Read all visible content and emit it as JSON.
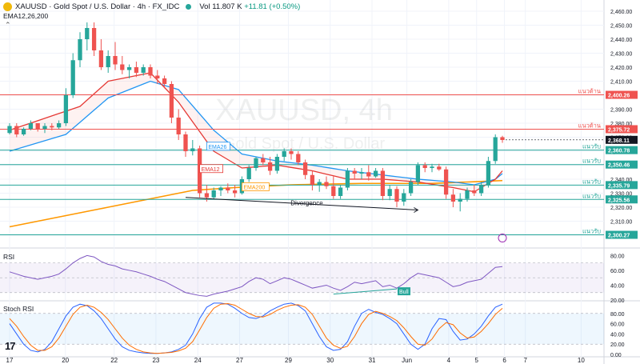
{
  "header": {
    "symbol": "XAUUSD · Gold Spot / U.S. Dollar · 4h · FX_IDC",
    "volume_label": "Vol",
    "volume_value": "11.807 K",
    "volume_change": "+11.81 (+0.50%)",
    "indicator_label": "EMA12,26,200"
  },
  "watermark": {
    "symbol": "XAUUSD, 4h",
    "name": "Gold Spot / U.S. Dollar"
  },
  "panes": {
    "rsi_label": "RSI",
    "stoch_label": "Stoch RSI"
  },
  "colors": {
    "up": "#26a69a",
    "down": "#ef5350",
    "ema12": "#e53935",
    "ema26": "#2196f3",
    "ema200": "#ff9800",
    "resistance": "#ef5350",
    "support": "#26a69a",
    "rsi": "#7e57c2",
    "stoch_k": "#2962ff",
    "stoch_d": "#ff6d00"
  },
  "chart_data": [
    {
      "type": "candlestick",
      "x_ticks": [
        "17",
        "20",
        "22",
        "23",
        "24",
        "27",
        "29",
        "30",
        "31",
        "Jun",
        "4",
        "5",
        "6",
        "7",
        "10"
      ],
      "y_ticks": [
        2300,
        2310,
        2320,
        2330,
        2340,
        2350,
        2360,
        2370,
        2380,
        2390,
        2400,
        2410,
        2420,
        2430,
        2440,
        2450,
        2460
      ],
      "y_tick_labels": [
        "2,300.00",
        "2,310.00",
        "2,320.00",
        "2,330.00",
        "2,340.00",
        "2,350.00",
        "2,360.00",
        "2,370.00",
        "2,380.00",
        "2,390.00",
        "2,400.00",
        "2,410.00",
        "2,420.00",
        "2,430.00",
        "2,440.00",
        "2,450.00",
        "2,460.00"
      ],
      "ylim": [
        2292,
        2468
      ],
      "candles": [
        [
          2373,
          2380,
          2372,
          2378
        ],
        [
          2378,
          2380,
          2370,
          2372
        ],
        [
          2372,
          2377,
          2371,
          2376
        ],
        [
          2376,
          2382,
          2375,
          2380
        ],
        [
          2380,
          2379,
          2374,
          2376
        ],
        [
          2376,
          2380,
          2373,
          2378
        ],
        [
          2378,
          2380,
          2375,
          2377
        ],
        [
          2377,
          2382,
          2376,
          2380
        ],
        [
          2380,
          2405,
          2378,
          2400
        ],
        [
          2400,
          2430,
          2398,
          2425
        ],
        [
          2425,
          2445,
          2420,
          2440
        ],
        [
          2440,
          2452,
          2432,
          2448
        ],
        [
          2448,
          2452,
          2428,
          2432
        ],
        [
          2432,
          2440,
          2418,
          2420
        ],
        [
          2420,
          2432,
          2416,
          2428
        ],
        [
          2428,
          2438,
          2418,
          2422
        ],
        [
          2422,
          2428,
          2415,
          2418
        ],
        [
          2418,
          2422,
          2412,
          2420
        ],
        [
          2420,
          2424,
          2413,
          2416
        ],
        [
          2416,
          2422,
          2414,
          2420
        ],
        [
          2420,
          2422,
          2412,
          2414
        ],
        [
          2414,
          2418,
          2408,
          2412
        ],
        [
          2412,
          2414,
          2405,
          2408
        ],
        [
          2408,
          2410,
          2380,
          2384
        ],
        [
          2384,
          2390,
          2368,
          2372
        ],
        [
          2372,
          2374,
          2356,
          2360
        ],
        [
          2360,
          2368,
          2357,
          2362
        ],
        [
          2362,
          2364,
          2327,
          2330
        ],
        [
          2330,
          2336,
          2324,
          2327
        ],
        [
          2327,
          2334,
          2326,
          2332
        ],
        [
          2332,
          2335,
          2328,
          2334
        ],
        [
          2334,
          2337,
          2330,
          2332
        ],
        [
          2332,
          2336,
          2327,
          2330
        ],
        [
          2330,
          2342,
          2329,
          2340
        ],
        [
          2340,
          2350,
          2338,
          2348
        ],
        [
          2348,
          2356,
          2346,
          2355
        ],
        [
          2355,
          2358,
          2350,
          2352
        ],
        [
          2352,
          2356,
          2343,
          2346
        ],
        [
          2346,
          2358,
          2344,
          2356
        ],
        [
          2356,
          2362,
          2353,
          2360
        ],
        [
          2360,
          2362,
          2354,
          2358
        ],
        [
          2358,
          2360,
          2350,
          2352
        ],
        [
          2352,
          2354,
          2340,
          2343
        ],
        [
          2343,
          2346,
          2332,
          2336
        ],
        [
          2336,
          2340,
          2331,
          2338
        ],
        [
          2338,
          2342,
          2333,
          2335
        ],
        [
          2335,
          2342,
          2326,
          2328
        ],
        [
          2328,
          2336,
          2326,
          2334
        ],
        [
          2334,
          2348,
          2332,
          2346
        ],
        [
          2346,
          2348,
          2340,
          2344
        ],
        [
          2344,
          2348,
          2340,
          2345
        ],
        [
          2345,
          2350,
          2339,
          2342
        ],
        [
          2342,
          2348,
          2341,
          2346
        ],
        [
          2346,
          2348,
          2325,
          2328
        ],
        [
          2328,
          2336,
          2325,
          2333
        ],
        [
          2333,
          2335,
          2320,
          2324
        ],
        [
          2324,
          2333,
          2321,
          2330
        ],
        [
          2330,
          2340,
          2328,
          2338
        ],
        [
          2338,
          2352,
          2336,
          2350
        ],
        [
          2350,
          2352,
          2345,
          2348
        ],
        [
          2348,
          2351,
          2345,
          2349
        ],
        [
          2349,
          2351,
          2346,
          2347
        ],
        [
          2347,
          2349,
          2326,
          2329
        ],
        [
          2329,
          2333,
          2320,
          2324
        ],
        [
          2324,
          2330,
          2317,
          2326
        ],
        [
          2326,
          2334,
          2324,
          2332
        ],
        [
          2332,
          2336,
          2328,
          2330
        ],
        [
          2330,
          2338,
          2328,
          2336
        ],
        [
          2336,
          2356,
          2334,
          2353
        ],
        [
          2353,
          2372,
          2351,
          2370
        ],
        [
          2370,
          2371,
          2366,
          2368
        ]
      ],
      "ema12_points": [
        [
          0,
          2375
        ],
        [
          10,
          2392
        ],
        [
          14,
          2410
        ],
        [
          20,
          2416
        ],
        [
          24,
          2395
        ],
        [
          29,
          2360
        ],
        [
          33,
          2348
        ],
        [
          38,
          2350
        ],
        [
          43,
          2346
        ],
        [
          48,
          2340
        ],
        [
          53,
          2340
        ],
        [
          58,
          2338
        ],
        [
          63,
          2334
        ],
        [
          66,
          2331
        ],
        [
          69,
          2340
        ],
        [
          70,
          2346
        ]
      ],
      "ema26_points": [
        [
          0,
          2360
        ],
        [
          8,
          2372
        ],
        [
          14,
          2398
        ],
        [
          20,
          2410
        ],
        [
          24,
          2404
        ],
        [
          29,
          2375
        ],
        [
          33,
          2358
        ],
        [
          38,
          2353
        ],
        [
          43,
          2350
        ],
        [
          48,
          2346
        ],
        [
          53,
          2343
        ],
        [
          58,
          2340
        ],
        [
          63,
          2338
        ],
        [
          66,
          2336
        ],
        [
          69,
          2340
        ],
        [
          70,
          2344
        ]
      ],
      "ema200_points": [
        [
          0,
          2306
        ],
        [
          10,
          2316
        ],
        [
          20,
          2326
        ],
        [
          26,
          2332
        ],
        [
          32,
          2334
        ],
        [
          40,
          2336
        ],
        [
          50,
          2337
        ],
        [
          60,
          2337
        ],
        [
          70,
          2339
        ]
      ],
      "series_labels": [
        {
          "name": "EMA26",
          "index": 28,
          "value": 2363
        },
        {
          "name": "EMA12",
          "index": 27,
          "value": 2347
        },
        {
          "name": "EMA200",
          "index": 33,
          "value": 2334
        }
      ],
      "levels": [
        {
          "value": 2400.26,
          "label": "แนวต้าน",
          "kind": "resistance",
          "price": "2,400.26"
        },
        {
          "value": 2375.72,
          "label": "แนวต้าน",
          "kind": "resistance",
          "price": "2,375.72"
        },
        {
          "value": 2360.78,
          "label": "แนวรับ",
          "kind": "support",
          "price": "2,360.78"
        },
        {
          "value": 2350.46,
          "label": "แนวรับ",
          "kind": "support",
          "price": "2,350.46"
        },
        {
          "value": 2335.79,
          "label": "แนวรับ",
          "kind": "support",
          "price": "2,335.79"
        },
        {
          "value": 2325.56,
          "label": "แนวรับ",
          "kind": "support",
          "price": "2,325.56"
        },
        {
          "value": 2300.27,
          "label": "แนวรับ",
          "kind": "support",
          "price": "2,300.27"
        }
      ],
      "last_price": {
        "value": 2368.11,
        "price": "2,368.11"
      },
      "annotation": {
        "text": "Divergence",
        "from": [
          25,
          2327
        ],
        "to": [
          58,
          2318
        ]
      }
    },
    {
      "type": "line",
      "name": "RSI",
      "y_ticks": [
        20,
        40,
        60,
        80
      ],
      "y_tick_labels": [
        "20.00",
        "40.00",
        "60.00",
        "80.00"
      ],
      "ylim": [
        20,
        88
      ],
      "band": [
        30,
        70
      ],
      "values": [
        58,
        55,
        52,
        50,
        48,
        50,
        52,
        55,
        62,
        70,
        76,
        80,
        78,
        72,
        68,
        66,
        62,
        60,
        58,
        55,
        52,
        48,
        45,
        40,
        35,
        30,
        28,
        26,
        25,
        28,
        30,
        32,
        35,
        38,
        45,
        50,
        48,
        42,
        46,
        50,
        48,
        44,
        40,
        36,
        38,
        40,
        36,
        33,
        38,
        44,
        42,
        44,
        46,
        38,
        40,
        36,
        42,
        50,
        56,
        54,
        52,
        50,
        44,
        38,
        40,
        44,
        46,
        48,
        56,
        64,
        65
      ],
      "annotation": {
        "text": "Bull",
        "from": [
          46,
          28
        ],
        "to": [
          55,
          35
        ]
      }
    },
    {
      "type": "line",
      "name": "Stoch RSI",
      "y_ticks": [
        0,
        20,
        40,
        60,
        80
      ],
      "y_tick_labels": [
        "0.00",
        "20.00",
        "40.00",
        "60.00",
        "80.00"
      ],
      "ylim": [
        -3,
        103
      ],
      "band": [
        20,
        80
      ],
      "k": [
        60,
        40,
        20,
        8,
        5,
        10,
        25,
        50,
        75,
        92,
        98,
        95,
        85,
        70,
        50,
        30,
        15,
        8,
        5,
        3,
        2,
        2,
        3,
        5,
        10,
        18,
        40,
        70,
        92,
        100,
        100,
        98,
        90,
        80,
        72,
        70,
        75,
        85,
        92,
        98,
        100,
        95,
        85,
        60,
        35,
        15,
        8,
        10,
        25,
        55,
        80,
        88,
        82,
        78,
        70,
        60,
        40,
        20,
        10,
        20,
        50,
        70,
        68,
        45,
        28,
        30,
        40,
        55,
        75,
        92,
        98
      ],
      "d": [
        70,
        55,
        35,
        18,
        8,
        8,
        15,
        32,
        55,
        78,
        92,
        96,
        92,
        82,
        68,
        50,
        32,
        18,
        10,
        5,
        3,
        2,
        3,
        4,
        7,
        12,
        25,
        48,
        72,
        90,
        98,
        99,
        96,
        88,
        80,
        74,
        73,
        78,
        86,
        92,
        96,
        97,
        92,
        78,
        55,
        32,
        18,
        12,
        16,
        35,
        60,
        78,
        84,
        80,
        74,
        66,
        52,
        35,
        20,
        18,
        30,
        50,
        62,
        58,
        42,
        32,
        34,
        45,
        60,
        78,
        90
      ]
    }
  ],
  "time_axis": {
    "labels": [
      "17",
      "20",
      "22",
      "23",
      "24",
      "27",
      "29",
      "30",
      "31",
      "Jun",
      "4",
      "5",
      "6",
      "7",
      "10"
    ]
  }
}
